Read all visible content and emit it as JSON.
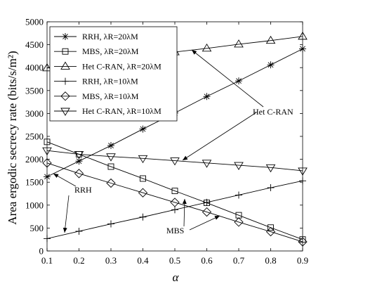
{
  "chart_data": {
    "type": "line",
    "title": "",
    "xlabel": "α",
    "ylabel": "Area ergodic secrecy rate (bits/s/m²)",
    "xlim": [
      0.1,
      0.9
    ],
    "ylim": [
      0,
      5000
    ],
    "xticks": [
      "0.1",
      "0.2",
      "0.3",
      "0.4",
      "0.5",
      "0.6",
      "0.7",
      "0.8",
      "0.9"
    ],
    "yticks": [
      "0",
      "500",
      "1000",
      "1500",
      "2000",
      "2500",
      "3000",
      "3500",
      "4000",
      "4500",
      "5000"
    ],
    "grid": false,
    "legend_position": "top-left",
    "x": [
      0.1,
      0.2,
      0.3,
      0.4,
      0.5,
      0.6,
      0.7,
      0.8,
      0.9
    ],
    "series": [
      {
        "name": "RRH, λR=20λM",
        "marker": "asterisk",
        "values": [
          1620,
          1960,
          2300,
          2660,
          3010,
          3370,
          3710,
          4060,
          4410
        ]
      },
      {
        "name": "MBS, λR=20λM",
        "marker": "square",
        "values": [
          2380,
          2110,
          1840,
          1580,
          1310,
          1050,
          780,
          510,
          250
        ]
      },
      {
        "name": "Het C-RAN, λR=20λM",
        "marker": "triangle-up",
        "values": [
          3990,
          4080,
          4170,
          4260,
          4340,
          4420,
          4510,
          4590,
          4680
        ]
      },
      {
        "name": "RRH, λR=10λM",
        "marker": "plus",
        "values": [
          270,
          430,
          590,
          740,
          900,
          1060,
          1220,
          1380,
          1530
        ]
      },
      {
        "name": "MBS, λR=10λM",
        "marker": "diamond",
        "values": [
          1920,
          1690,
          1480,
          1270,
          1060,
          850,
          630,
          420,
          200
        ]
      },
      {
        "name": "Het C-RAN, λR=10λM",
        "marker": "triangle-down",
        "values": [
          2190,
          2110,
          2060,
          2020,
          1970,
          1920,
          1870,
          1820,
          1750
        ]
      }
    ],
    "annotations": [
      {
        "text": "Het C-RAN"
      },
      {
        "text": "RRH"
      },
      {
        "text": "MBS"
      }
    ]
  }
}
